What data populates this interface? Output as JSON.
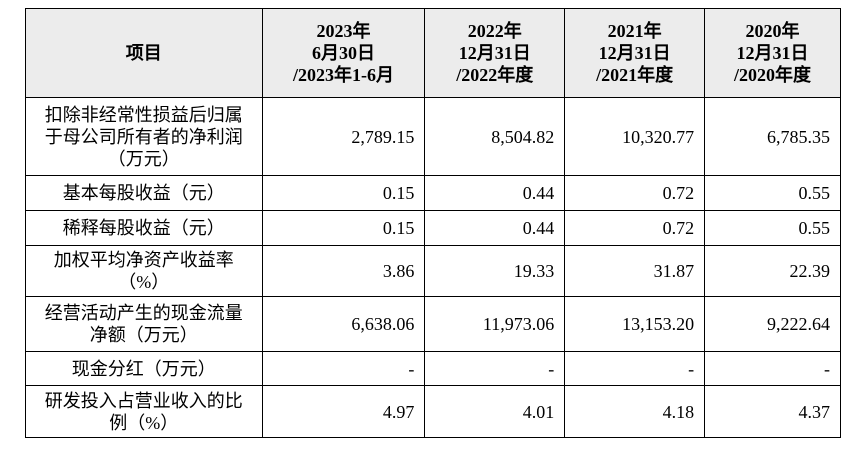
{
  "table": {
    "header": [
      [
        "项目"
      ],
      [
        "2023年",
        "6月30日",
        "/2023年1-6月"
      ],
      [
        "2022年",
        "12月31日",
        "/2022年度"
      ],
      [
        "2021年",
        "12月31日",
        "/2021年度"
      ],
      [
        "2020年",
        "12月31日",
        "/2020年度"
      ]
    ],
    "rows": [
      [
        "扣除非经常性损益后归属于母公司所有者的净利润（万元）",
        "2,789.15",
        "8,504.82",
        "10,320.77",
        "6,785.35"
      ],
      [
        "基本每股收益（元）",
        "0.15",
        "0.44",
        "0.72",
        "0.55"
      ],
      [
        "稀释每股收益（元）",
        "0.15",
        "0.44",
        "0.72",
        "0.55"
      ],
      [
        "加权平均净资产收益率（%）",
        "3.86",
        "19.33",
        "31.87",
        "22.39"
      ],
      [
        "经营活动产生的现金流量净额（万元）",
        "6,638.06",
        "11,973.06",
        "13,153.20",
        "9,222.64"
      ],
      [
        "现金分红（万元）",
        "-",
        "-",
        "-",
        "-"
      ],
      [
        "研发投入占营业收入的比例（%）",
        "4.97",
        "4.01",
        "4.18",
        "4.37"
      ]
    ]
  }
}
